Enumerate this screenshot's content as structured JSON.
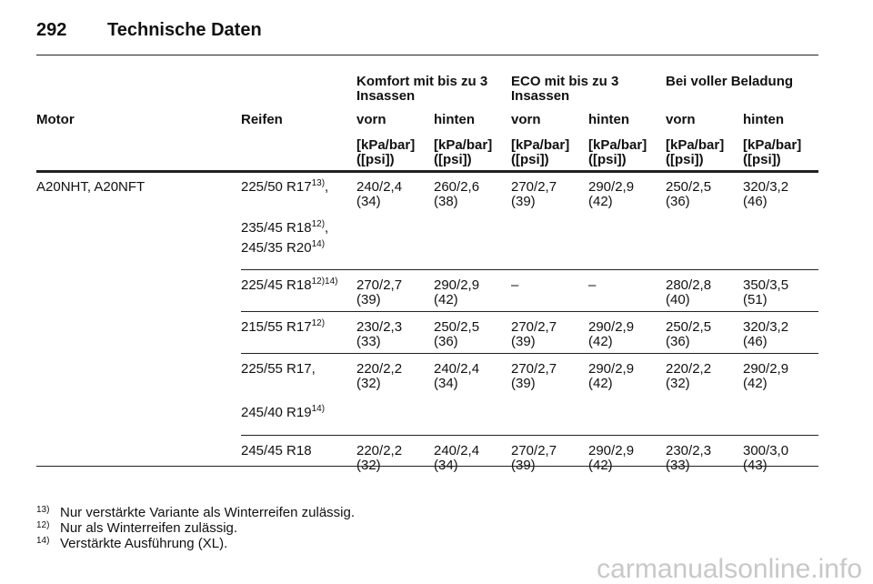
{
  "header": {
    "page": "292",
    "title": "Technische Daten"
  },
  "table": {
    "group_headers": [
      "Komfort mit bis zu 3 Insassen",
      "ECO mit bis zu 3 Insassen",
      "Bei voller Beladung"
    ],
    "columns": [
      "Motor",
      "Reifen",
      "vorn",
      "hinten",
      "vorn",
      "hinten",
      "vorn",
      "hinten"
    ],
    "units": [
      "[kPa/bar] ([psi])",
      "[kPa/bar] ([psi])",
      "[kPa/bar] ([psi])",
      "[kPa/bar] ([psi])",
      "[kPa/bar] ([psi])",
      "[kPa/bar] ([psi])"
    ],
    "motor": "A20NHT, A20NFT",
    "rows": [
      {
        "tyres": [
          {
            "size": "225/50 R17",
            "note": "13)",
            "sep": ","
          },
          {
            "size": "235/45 R18",
            "note": "12)",
            "sep": ","
          },
          {
            "size": "245/35 R20",
            "note": "14)"
          }
        ],
        "values": [
          {
            "bar": "240/2,4",
            "psi": "(34)"
          },
          {
            "bar": "260/2,6",
            "psi": "(38)"
          },
          {
            "bar": "270/2,7",
            "psi": "(39)"
          },
          {
            "bar": "290/2,9",
            "psi": "(42)"
          },
          {
            "bar": "250/2,5",
            "psi": "(36)"
          },
          {
            "bar": "320/3,2",
            "psi": "(46)"
          }
        ]
      },
      {
        "tyres": [
          {
            "size": "225/45 R18",
            "note": "12)14)"
          }
        ],
        "values": [
          {
            "bar": "270/2,7",
            "psi": "(39)"
          },
          {
            "bar": "290/2,9",
            "psi": "(42)"
          },
          {
            "bar": "–"
          },
          {
            "bar": "–"
          },
          {
            "bar": "280/2,8",
            "psi": "(40)"
          },
          {
            "bar": "350/3,5",
            "psi": "(51)"
          }
        ]
      },
      {
        "tyres": [
          {
            "size": "215/55 R17",
            "note": "12)"
          }
        ],
        "values": [
          {
            "bar": "230/2,3",
            "psi": "(33)"
          },
          {
            "bar": "250/2,5",
            "psi": "(36)"
          },
          {
            "bar": "270/2,7",
            "psi": "(39)"
          },
          {
            "bar": "290/2,9",
            "psi": "(42)"
          },
          {
            "bar": "250/2,5",
            "psi": "(36)"
          },
          {
            "bar": "320/3,2",
            "psi": "(46)"
          }
        ]
      },
      {
        "tyres": [
          {
            "size": "225/55 R17",
            "sep": ","
          },
          {
            "size": "245/40 R19",
            "note": "14)"
          }
        ],
        "values": [
          {
            "bar": "220/2,2",
            "psi": "(32)"
          },
          {
            "bar": "240/2,4",
            "psi": "(34)"
          },
          {
            "bar": "270/2,7",
            "psi": "(39)"
          },
          {
            "bar": "290/2,9",
            "psi": "(42)"
          },
          {
            "bar": "220/2,2",
            "psi": "(32)"
          },
          {
            "bar": "290/2,9",
            "psi": "(42)"
          }
        ]
      },
      {
        "tyres": [
          {
            "size": "245/45 R18"
          }
        ],
        "values": [
          {
            "bar": "220/2,2",
            "psi": "(32)"
          },
          {
            "bar": "240/2,4",
            "psi": "(34)"
          },
          {
            "bar": "270/2,7",
            "psi": "(39)"
          },
          {
            "bar": "290/2,9",
            "psi": "(42)"
          },
          {
            "bar": "230/2,3",
            "psi": "(33)"
          },
          {
            "bar": "300/3,0",
            "psi": "(43)"
          }
        ]
      }
    ]
  },
  "footnotes": [
    {
      "mark": "13)",
      "text": "Nur verstärkte Variante als Winterreifen zulässig."
    },
    {
      "mark": "12)",
      "text": "Nur als Winterreifen zulässig."
    },
    {
      "mark": "14)",
      "text": "Verstärkte Ausführung (XL)."
    }
  ],
  "watermark": "carmanualsonline.info"
}
